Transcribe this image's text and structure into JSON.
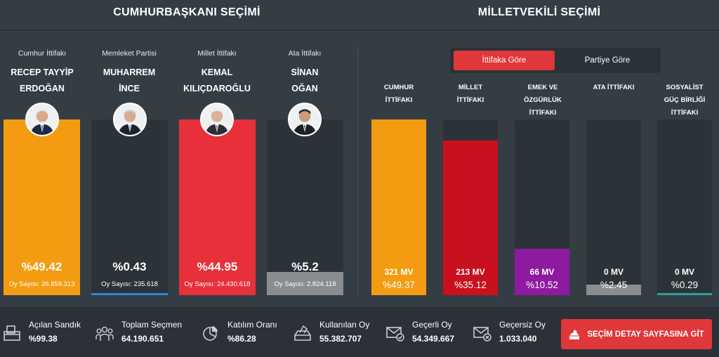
{
  "sections": {
    "presidential_title": "CUMHURBAŞKANI SEÇİMİ",
    "parliament_title": "MİLLETVEKİLİ SEÇİMİ"
  },
  "candidates": [
    {
      "party": "Cumhur İttifakı",
      "name_line1": "RECEP TAYYİP",
      "name_line2": "ERDOĞAN",
      "percent": "%49.42",
      "percent_value": 49.42,
      "votes": "Oy Sayısı: 26.859.313",
      "color": "#f39c12"
    },
    {
      "party": "Memleket Partisi",
      "name_line1": "MUHARREM",
      "name_line2": "İNCE",
      "percent": "%0.43",
      "percent_value": 0.43,
      "votes": "Oy Sayısı: 235.618",
      "color": "#2e86de"
    },
    {
      "party": "Millet İttifakı",
      "name_line1": "KEMAL",
      "name_line2": "KILIÇDAROĞLU",
      "percent": "%44.95",
      "percent_value": 44.95,
      "votes": "Oy Sayısı: 24.430.618",
      "color": "#e8303a"
    },
    {
      "party": "Ata İttifakı",
      "name_line1": "SİNAN",
      "name_line2": "OĞAN",
      "percent": "%5.2",
      "percent_value": 5.2,
      "votes": "Oy Sayısı: 2.824.118",
      "color": "#8a8d90"
    }
  ],
  "toggle": {
    "active_label": "İttifaka Göre",
    "inactive_label": "Partiye Göre"
  },
  "alliances": [
    {
      "line1": "CUMHUR",
      "line2": "İTTİFAKI",
      "line3": "",
      "seats": "321 MV",
      "percent": "%49.37",
      "percent_value": 49.37,
      "color": "#f39c12"
    },
    {
      "line1": "MİLLET",
      "line2": "İTTİFAKI",
      "line3": "",
      "seats": "213 MV",
      "percent": "%35.12",
      "percent_value": 35.12,
      "color": "#c8101e"
    },
    {
      "line1": "EMEK VE",
      "line2": "ÖZGÜRLÜK",
      "line3": "İTTİFAKI",
      "seats": "66 MV",
      "percent": "%10.52",
      "percent_value": 10.52,
      "color": "#8e1aa0"
    },
    {
      "line1": "ATA İTTİFAKI",
      "line2": "",
      "line3": "",
      "seats": "0 MV",
      "percent": "%2.45",
      "percent_value": 2.45,
      "color": "#8a8d90"
    },
    {
      "line1": "SOSYALİST",
      "line2": "GÜÇ BİRLİĞİ",
      "line3": "İTTİFAKI",
      "seats": "0 MV",
      "percent": "%0.29",
      "percent_value": 0.29,
      "color": "#2aa198"
    }
  ],
  "stats": [
    {
      "label": "Açılan Sandık",
      "value": "%99.38",
      "icon": "ballot-box-icon"
    },
    {
      "label": "Toplam Seçmen",
      "value": "64.190.651",
      "icon": "people-icon"
    },
    {
      "label": "Katılım Oranı",
      "value": "%86.28",
      "icon": "pie-chart-icon"
    },
    {
      "label": "Kullanılan Oy",
      "value": "55.382.707",
      "icon": "vote-box-icon"
    },
    {
      "label": "Geçerli Oy",
      "value": "54.349.667",
      "icon": "envelope-check-icon"
    },
    {
      "label": "Geçersiz Oy",
      "value": "1.033.040",
      "icon": "envelope-x-icon"
    }
  ],
  "cta": {
    "label": "SEÇİM DETAY SAYFASINA GİT",
    "icon": "ballot-icon"
  }
}
